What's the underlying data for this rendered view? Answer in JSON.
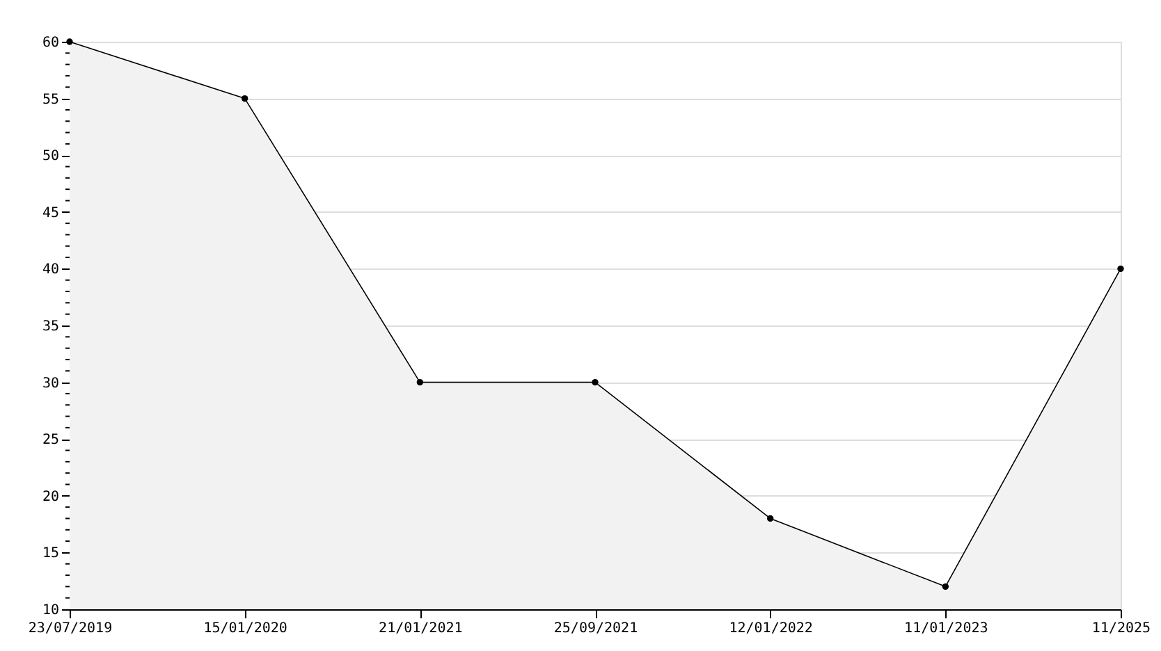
{
  "chart_data": {
    "type": "area",
    "categories": [
      "23/07/2019",
      "15/01/2020",
      "21/01/2021",
      "25/09/2021",
      "12/01/2022",
      "11/01/2023",
      "11/2025"
    ],
    "series": [
      {
        "color": "#000000",
        "values": [
          60,
          55,
          30,
          30,
          18,
          12,
          40
        ]
      }
    ],
    "ylim": [
      10,
      60
    ],
    "yticks": [
      10,
      {
        "value": 11,
        "label": null
      },
      {
        "value": 12,
        "label": null
      },
      {
        "value": 13,
        "label": null
      },
      {
        "value": 14,
        "label": null
      },
      15,
      {
        "value": 16,
        "label": null
      },
      {
        "value": 17,
        "label": null
      },
      {
        "value": 18,
        "label": null
      },
      {
        "value": 19,
        "label": null
      },
      20,
      {
        "value": 21,
        "label": null
      },
      {
        "value": 22,
        "label": null
      },
      {
        "value": 23,
        "label": null
      },
      {
        "value": 24,
        "label": null
      },
      25,
      {
        "value": 26,
        "label": null
      },
      {
        "value": 27,
        "label": null
      },
      {
        "value": 28,
        "label": null
      },
      {
        "value": 29,
        "label": null
      },
      30,
      {
        "value": 31,
        "label": null
      },
      {
        "value": 32,
        "label": null
      },
      {
        "value": 33,
        "label": null
      },
      {
        "value": 34,
        "label": null
      },
      35,
      {
        "value": 36,
        "label": null
      },
      {
        "value": 37,
        "label": null
      },
      {
        "value": 38,
        "label": null
      },
      {
        "value": 39,
        "label": null
      },
      40,
      {
        "value": 41,
        "label": null
      },
      {
        "value": 42,
        "label": null
      },
      {
        "value": 43,
        "label": null
      },
      {
        "value": 44,
        "label": null
      },
      45,
      {
        "value": 46,
        "label": null
      },
      {
        "value": 47,
        "label": null
      },
      {
        "value": 48,
        "label": null
      },
      {
        "value": 49,
        "label": null
      },
      50,
      {
        "value": 51,
        "label": null
      },
      {
        "value": 52,
        "label": null
      },
      {
        "value": 53,
        "label": null
      },
      {
        "value": 54,
        "label": null
      },
      55,
      {
        "value": 56,
        "label": null
      },
      {
        "value": 57,
        "label": null
      },
      {
        "value": 58,
        "label": null
      },
      {
        "value": 59,
        "label": null
      },
      60
    ],
    "grid": "y",
    "marker": "circle"
  }
}
